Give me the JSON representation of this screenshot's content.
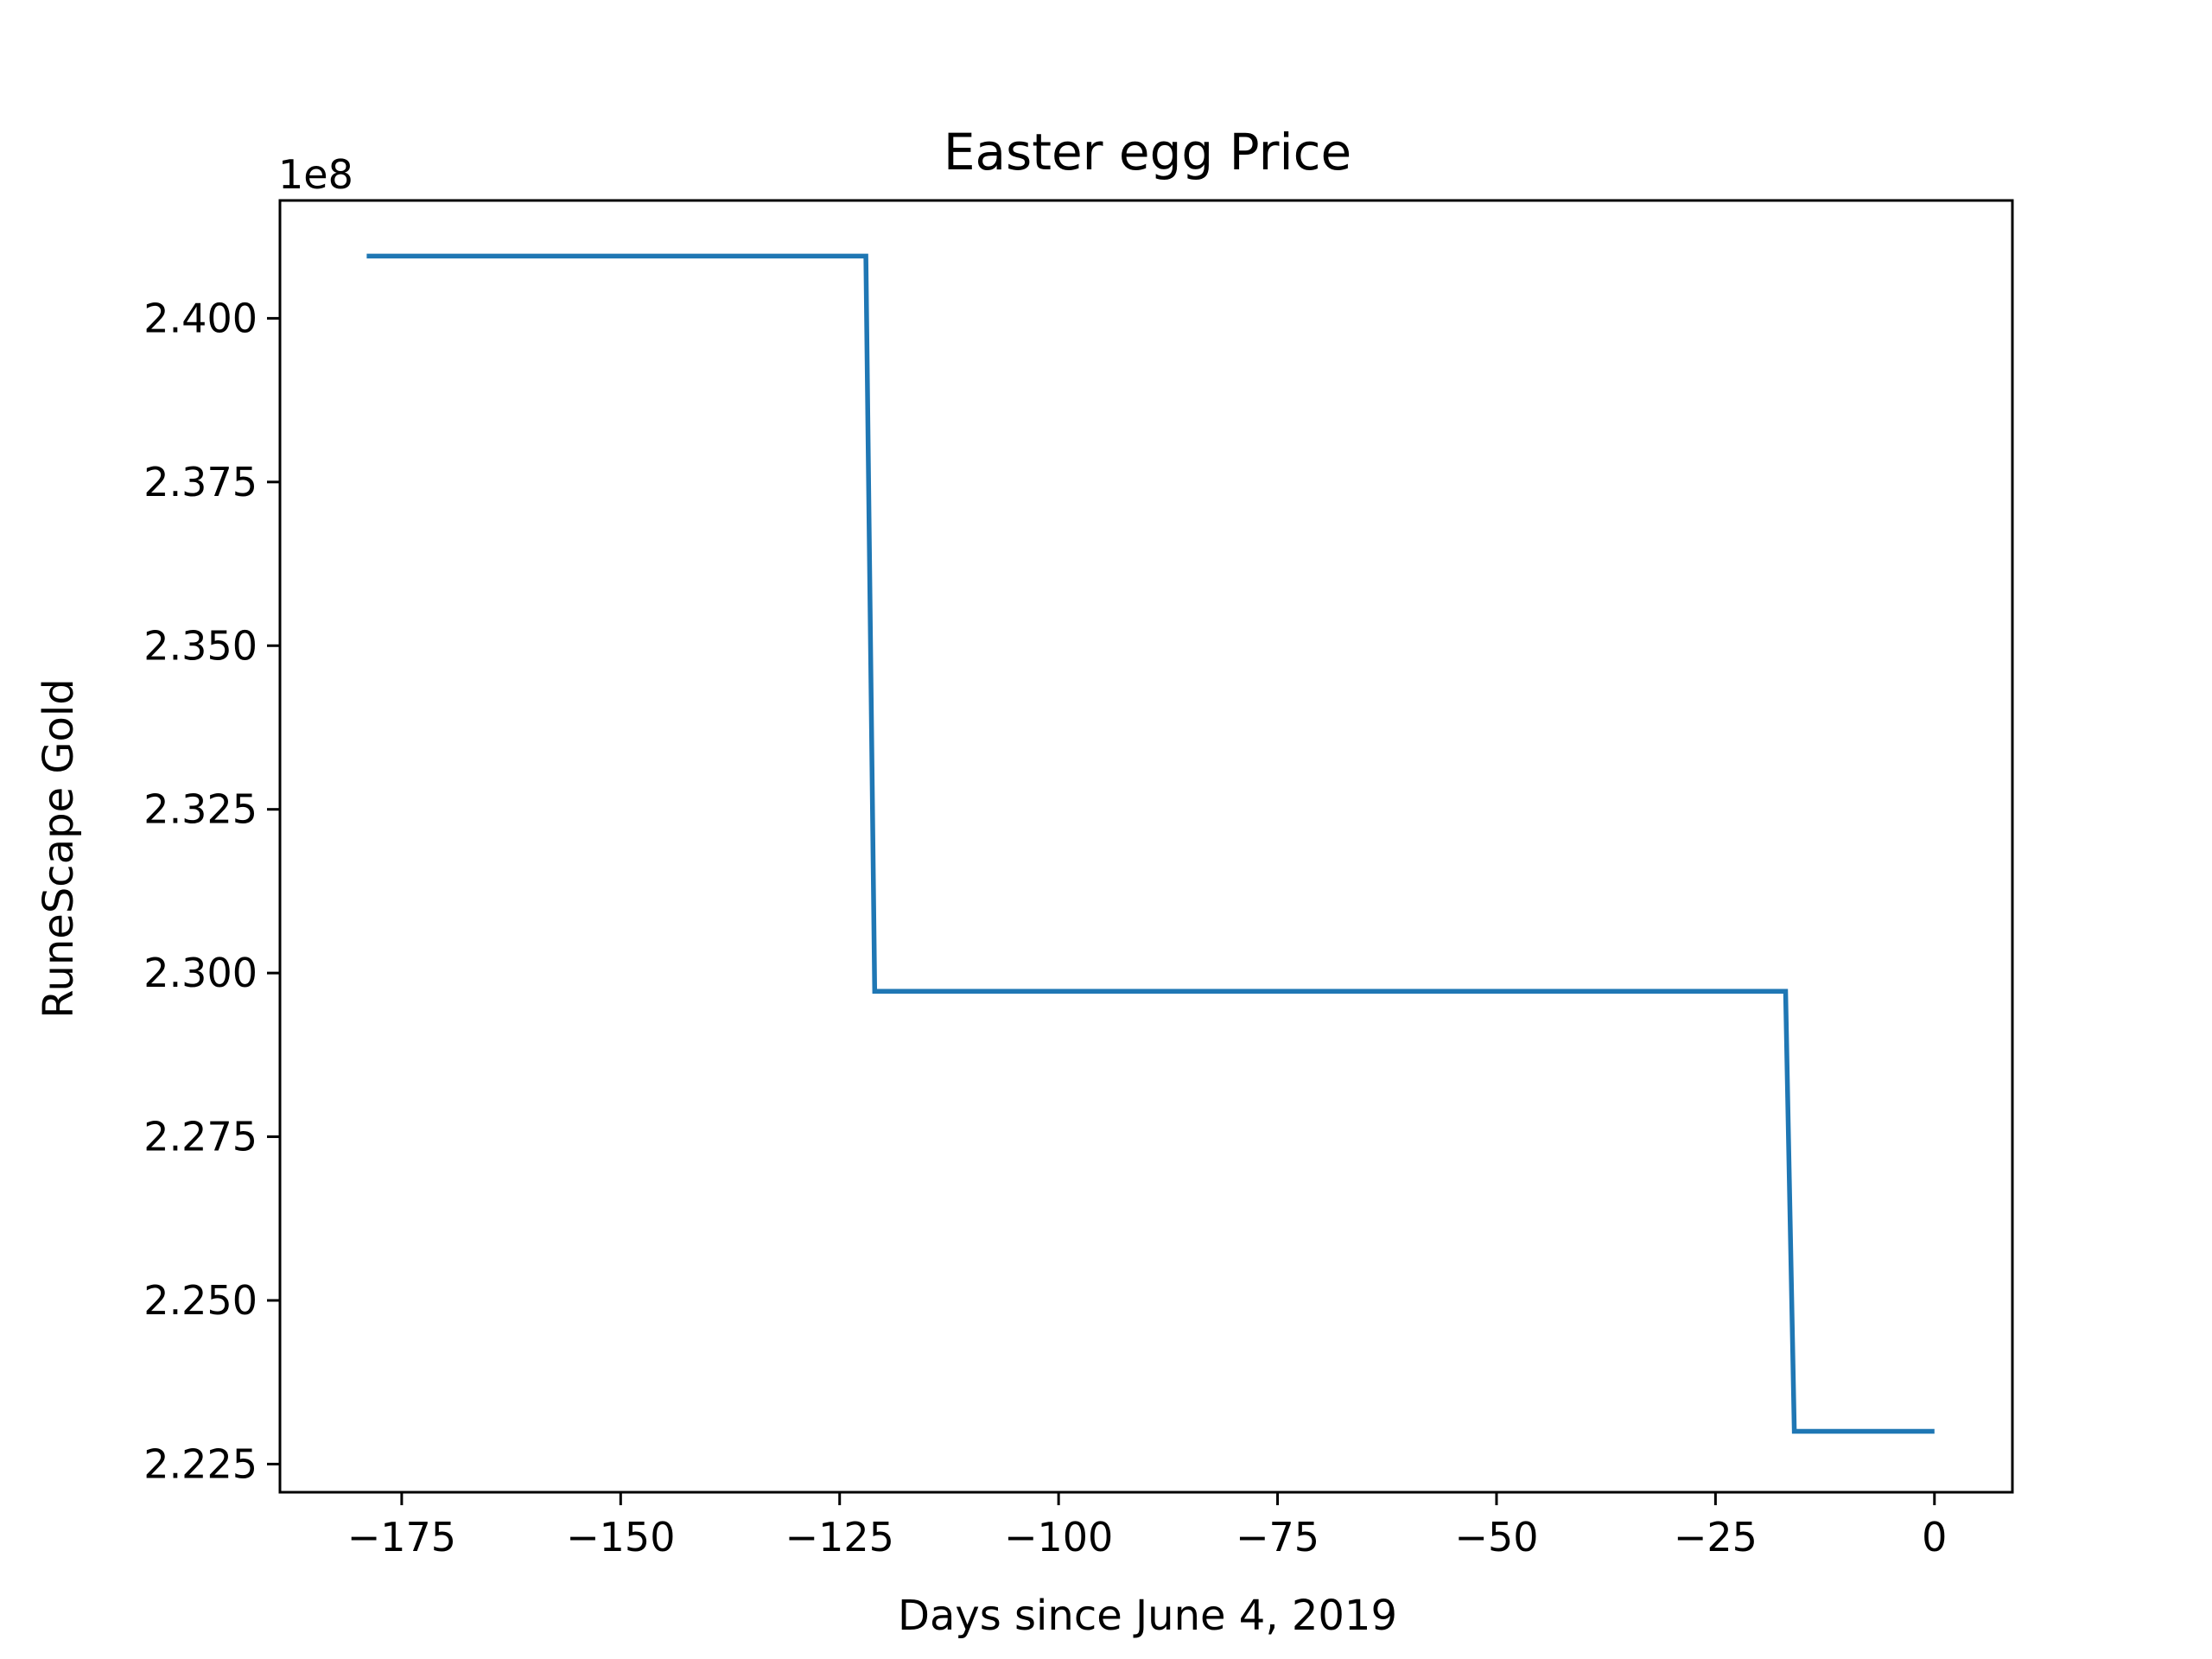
{
  "chart_data": {
    "type": "line",
    "title": "Easter egg Price",
    "xlabel": "Days since June 4, 2019",
    "ylabel": "RuneScape Gold",
    "y_offset_label": "1e8",
    "xlim": [
      -188.9,
      8.9
    ],
    "ylim": [
      2.2207,
      2.418
    ],
    "x_ticks": [
      -175,
      -150,
      -125,
      -100,
      -75,
      -50,
      -25,
      0
    ],
    "x_tick_labels": [
      "−175",
      "−150",
      "−125",
      "−100",
      "−75",
      "−50",
      "−25",
      "0"
    ],
    "y_ticks": [
      2.225,
      2.25,
      2.275,
      2.3,
      2.325,
      2.35,
      2.375,
      2.4
    ],
    "y_tick_labels": [
      "2.225",
      "2.250",
      "2.275",
      "2.300",
      "2.325",
      "2.350",
      "2.375",
      "2.400"
    ],
    "grid": false,
    "series": [
      {
        "color": "#1f77b4",
        "x": [
          -179,
          -122,
          -121,
          -17,
          -16,
          0
        ],
        "y": [
          2.4095,
          2.4095,
          2.2972,
          2.2972,
          2.23,
          2.23
        ]
      }
    ]
  }
}
